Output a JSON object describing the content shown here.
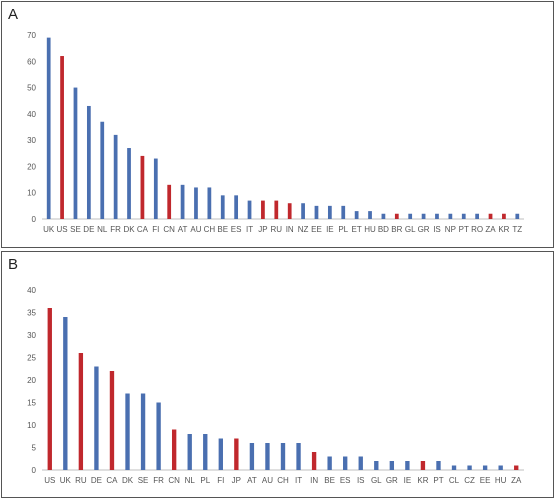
{
  "colors": {
    "blue": "#4a6fb0",
    "red": "#c0282d",
    "grid": "#d9d9d9",
    "axis": "#bfbfbf"
  },
  "chart_data": [
    {
      "type": "bar",
      "panel_label": "A",
      "title": "",
      "xlabel": "",
      "ylabel": "",
      "ylim": [
        0,
        70
      ],
      "yticks": [
        0,
        10,
        20,
        30,
        40,
        50,
        60,
        70
      ],
      "grid": false,
      "categories": [
        "UK",
        "US",
        "SE",
        "DE",
        "NL",
        "FR",
        "DK",
        "CA",
        "FI",
        "CN",
        "AT",
        "AU",
        "CH",
        "BE",
        "ES",
        "IT",
        "JP",
        "RU",
        "IN",
        "NZ",
        "EE",
        "IE",
        "PL",
        "ET",
        "HU",
        "BD",
        "BR",
        "GL",
        "GR",
        "IS",
        "NP",
        "PT",
        "RO",
        "ZA",
        "KR",
        "TZ"
      ],
      "values": [
        69,
        62,
        50,
        43,
        37,
        32,
        27,
        24,
        23,
        13,
        13,
        12,
        12,
        9,
        9,
        7,
        7,
        7,
        6,
        6,
        5,
        5,
        5,
        3,
        3,
        2,
        2,
        2,
        2,
        2,
        2,
        2,
        2,
        2,
        2,
        2
      ],
      "bar_colors": [
        "blue",
        "red",
        "blue",
        "blue",
        "blue",
        "blue",
        "blue",
        "red",
        "blue",
        "red",
        "blue",
        "blue",
        "blue",
        "blue",
        "blue",
        "blue",
        "red",
        "red",
        "red",
        "blue",
        "blue",
        "blue",
        "blue",
        "blue",
        "blue",
        "blue",
        "red",
        "blue",
        "blue",
        "blue",
        "blue",
        "blue",
        "blue",
        "red",
        "red",
        "blue"
      ]
    },
    {
      "type": "bar",
      "panel_label": "B",
      "title": "",
      "xlabel": "",
      "ylabel": "",
      "ylim": [
        0,
        40
      ],
      "yticks": [
        0,
        5,
        10,
        15,
        20,
        25,
        30,
        35,
        40
      ],
      "grid": false,
      "categories": [
        "US",
        "UK",
        "RU",
        "DE",
        "CA",
        "DK",
        "SE",
        "FR",
        "CN",
        "NL",
        "PL",
        "FI",
        "JP",
        "AT",
        "AU",
        "CH",
        "IT",
        "IN",
        "BE",
        "ES",
        "IS",
        "GL",
        "GR",
        "IE",
        "KR",
        "PT",
        "CL",
        "CZ",
        "EE",
        "HU",
        "ZA"
      ],
      "values": [
        36,
        34,
        26,
        23,
        22,
        17,
        17,
        15,
        9,
        8,
        8,
        7,
        7,
        6,
        6,
        6,
        6,
        4,
        3,
        3,
        3,
        2,
        2,
        2,
        2,
        2,
        1,
        1,
        1,
        1,
        1
      ],
      "bar_colors": [
        "red",
        "blue",
        "red",
        "blue",
        "red",
        "blue",
        "blue",
        "blue",
        "red",
        "blue",
        "blue",
        "blue",
        "red",
        "blue",
        "blue",
        "blue",
        "blue",
        "red",
        "blue",
        "blue",
        "blue",
        "blue",
        "blue",
        "blue",
        "red",
        "blue",
        "blue",
        "blue",
        "blue",
        "blue",
        "red"
      ]
    }
  ]
}
